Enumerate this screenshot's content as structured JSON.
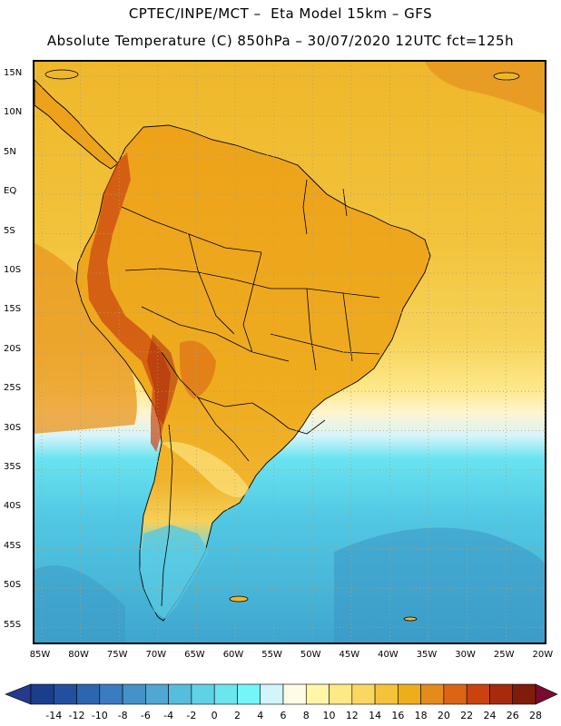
{
  "header": {
    "title_line1": "CPTEC/INPE/MCT –  Eta Model 15km – GFS",
    "title_line2": "Absolute Temperature (C) 850hPa – 30/07/2020 12UTC fct=125h"
  },
  "map": {
    "lat_labels": [
      "15N",
      "10N",
      "5N",
      "EQ",
      "5S",
      "10S",
      "15S",
      "20S",
      "25S",
      "30S",
      "35S",
      "40S",
      "45S",
      "50S",
      "55S"
    ],
    "lon_labels": [
      "85W",
      "80W",
      "75W",
      "70W",
      "65W",
      "60W",
      "55W",
      "50W",
      "45W",
      "40W",
      "35W",
      "30W",
      "25W",
      "20W"
    ],
    "grid_style": "dotted",
    "field": "temperature",
    "ocean_bands": [
      {
        "range": "north",
        "level": 18,
        "color": "#f0b72b"
      },
      {
        "range": "tropics",
        "level": 16,
        "color": "#f4c63a"
      },
      {
        "range": "subtropics",
        "level": 14,
        "color": "#fde070"
      },
      {
        "range": "mid",
        "level": 8,
        "color": "#fff6d8"
      },
      {
        "range": "cold",
        "level": 2,
        "color": "#5fd8e8"
      },
      {
        "range": "colder",
        "level": -2,
        "color": "#45bcda"
      }
    ]
  },
  "colorbar": {
    "labels": [
      "-14",
      "-12",
      "-10",
      "-8",
      "-6",
      "-4",
      "-2",
      "0",
      "2",
      "4",
      "6",
      "8",
      "10",
      "12",
      "14",
      "16",
      "18",
      "20",
      "22",
      "24",
      "26",
      "28"
    ],
    "colors": [
      "#1b3e8c",
      "#23509e",
      "#2c66b0",
      "#3a7cbf",
      "#4592c8",
      "#4fa7d2",
      "#57bddc",
      "#5fd2e6",
      "#6be5ee",
      "#74f6f6",
      "#d2f4fb",
      "#fffbe6",
      "#fff6a8",
      "#ffe886",
      "#fad760",
      "#f4c33b",
      "#eeae1c",
      "#e58a1d",
      "#da6516",
      "#c9420f",
      "#a82a0d",
      "#7f1c0c"
    ],
    "left_arrow_color": "#243a8c",
    "right_arrow_color": "#7a0a2e"
  }
}
